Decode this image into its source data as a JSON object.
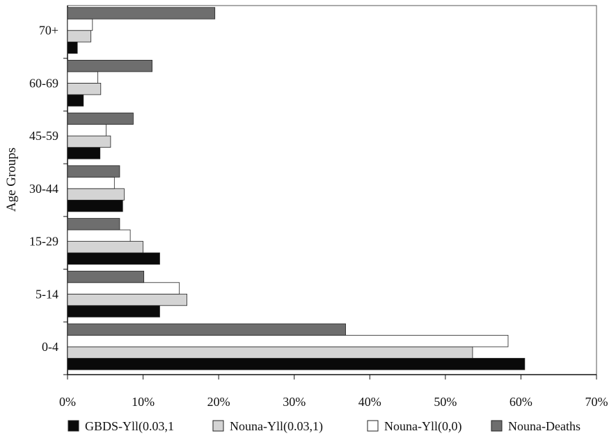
{
  "chart_data": {
    "type": "bar",
    "orientation": "horizontal",
    "ylabel": "Age Groups",
    "xlabel": "",
    "xlim": [
      0,
      70
    ],
    "x_ticks": [
      "0%",
      "10%",
      "20%",
      "30%",
      "40%",
      "50%",
      "60%",
      "70%"
    ],
    "categories": [
      "0-4",
      "5-14",
      "15-29",
      "30-44",
      "45-59",
      "60-69",
      "70+"
    ],
    "series": [
      {
        "name": "GBDS-Yll(0.03,1",
        "color": "#0a0a0a",
        "values": [
          60.5,
          12.2,
          12.2,
          7.3,
          4.3,
          2.1,
          1.3
        ]
      },
      {
        "name": "Nouna-Yll(0.03,1)",
        "color": "#d4d4d4",
        "values": [
          53.6,
          15.8,
          10.0,
          7.5,
          5.7,
          4.4,
          3.1
        ]
      },
      {
        "name": "Nouna-Yll(0,0)",
        "color": "#ffffff",
        "values": [
          58.3,
          14.8,
          8.3,
          6.2,
          5.1,
          4.0,
          3.3
        ]
      },
      {
        "name": "Nouna-Deaths",
        "color": "#6e6e6e",
        "values": [
          36.8,
          10.1,
          6.9,
          6.9,
          8.7,
          11.2,
          19.5
        ]
      }
    ],
    "grid": false,
    "legend_position": "bottom"
  }
}
